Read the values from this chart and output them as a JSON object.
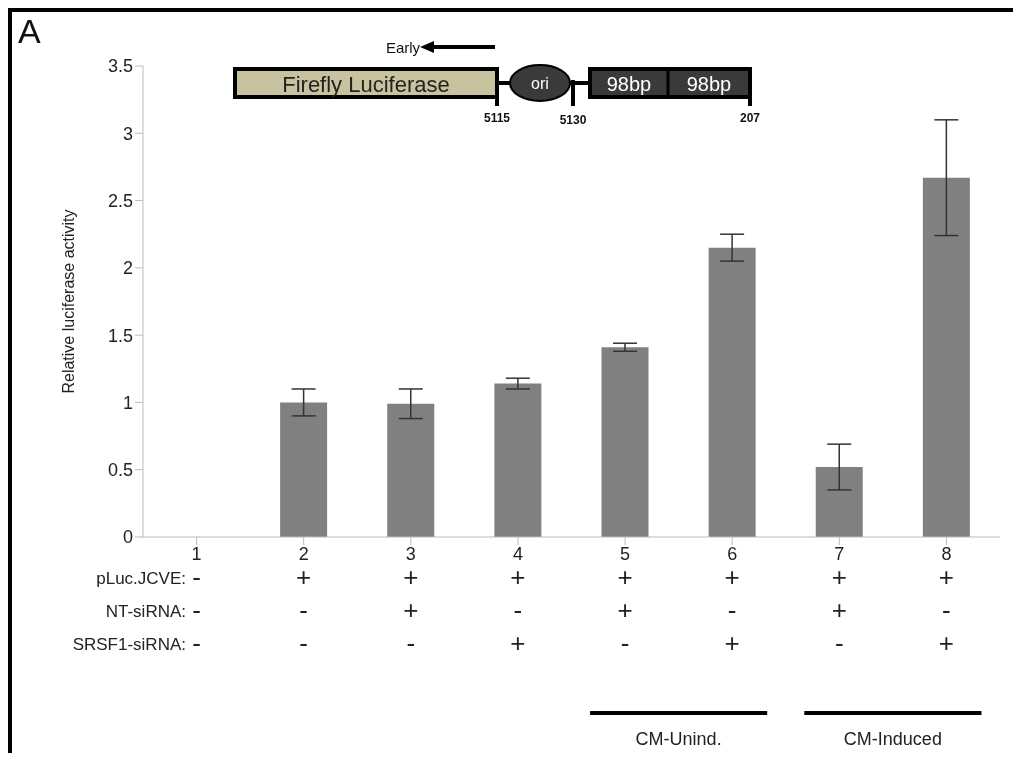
{
  "chart_data": {
    "type": "bar",
    "ylabel": "Relative luciferase activity",
    "categories": [
      "1",
      "2",
      "3",
      "4",
      "5",
      "6",
      "7",
      "8"
    ],
    "values": [
      0,
      1.0,
      0.99,
      1.14,
      1.41,
      2.15,
      0.52,
      2.67
    ],
    "errors": [
      null,
      0.1,
      0.11,
      0.04,
      0.03,
      0.1,
      0.17,
      0.43
    ],
    "color": "#808080",
    "ylim": [
      0,
      3.5
    ],
    "yticks": [
      0,
      0.5,
      1,
      1.5,
      2,
      2.5,
      3,
      3.5
    ],
    "grid": false,
    "annotations": [
      "A",
      "Early",
      "Firefly Luciferase",
      "ori",
      "98bp",
      "98bp",
      "5115",
      "5130",
      "207",
      "pLuc.JCVE:",
      "-",
      "+",
      "+",
      "+",
      "+",
      "+",
      "+",
      "+",
      "NT-siRNA:",
      "-",
      "-",
      "+",
      "-",
      "+",
      "-",
      "+",
      "-",
      "SRSF1-siRNA:",
      "-",
      "-",
      "-",
      "+",
      "-",
      "+",
      "-",
      "+",
      "CM-Unind.",
      "CM-Induced"
    ]
  }
}
